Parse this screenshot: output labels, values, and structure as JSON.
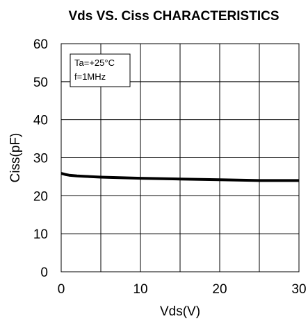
{
  "chart_data": {
    "type": "line",
    "title": "Vds  VS. Ciss CHARACTERISTICS",
    "xlabel": "Vds(V)",
    "ylabel": "Ciss(pF)",
    "xlim": [
      0,
      30
    ],
    "ylim": [
      0,
      60
    ],
    "xticks": [
      0,
      10,
      20,
      30
    ],
    "xtick_labels": [
      "0",
      "10",
      "20",
      "30"
    ],
    "yticks": [
      0,
      10,
      20,
      30,
      40,
      50,
      60
    ],
    "ytick_labels": [
      "0",
      "10",
      "20",
      "30",
      "40",
      "50",
      "60"
    ],
    "x_gridlines": [
      0,
      5,
      10,
      15,
      20,
      25,
      30
    ],
    "grid": true,
    "legend_position": "top-left",
    "annotations": [
      "Ta=+25°C",
      "f=1MHz"
    ],
    "series": [
      {
        "color": "#000000",
        "x": [
          0,
          0.5,
          1,
          2,
          3,
          5,
          10,
          15,
          20,
          25,
          30
        ],
        "y": [
          25.9,
          25.6,
          25.4,
          25.2,
          25.1,
          24.9,
          24.6,
          24.4,
          24.2,
          24.0,
          24.0
        ]
      }
    ]
  }
}
